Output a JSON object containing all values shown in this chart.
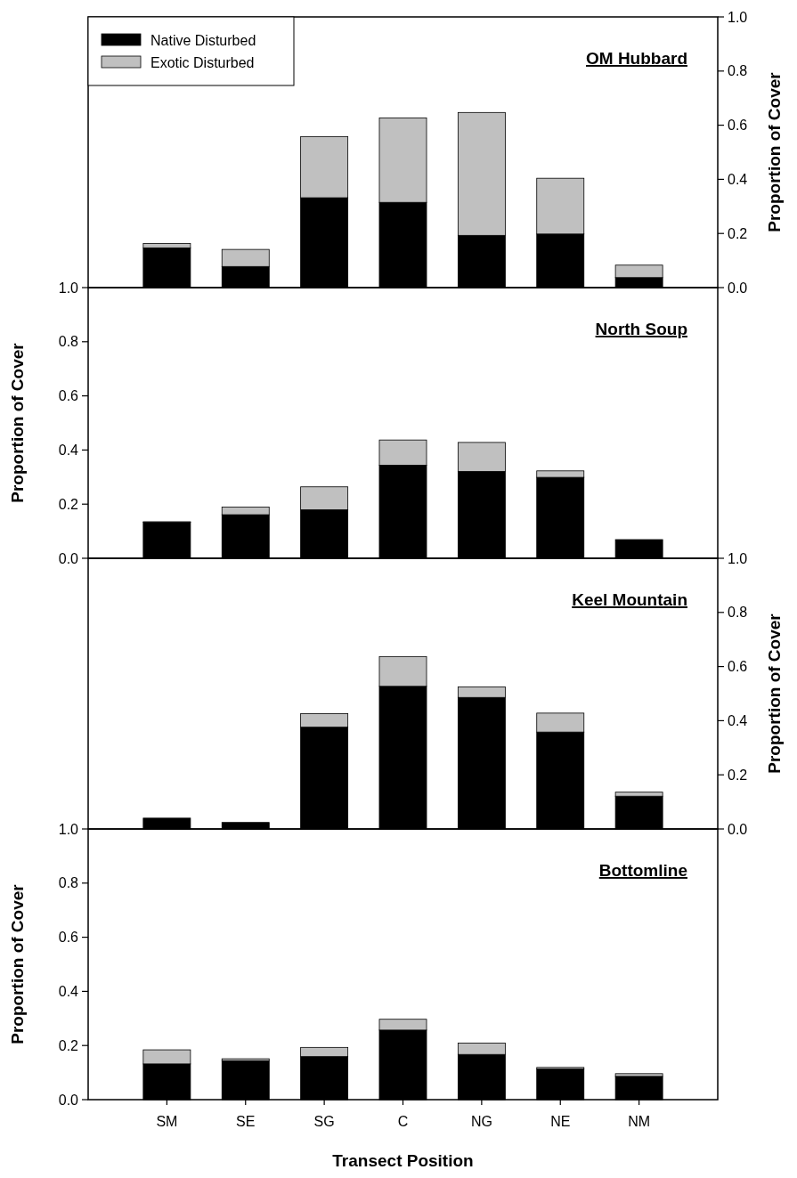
{
  "chart_data": [
    {
      "type": "bar",
      "title": "OM Hubbard",
      "stacked": true,
      "legend": "top left",
      "categories": [
        null,
        null,
        null,
        null,
        null,
        null,
        null
      ],
      "ylabel": "Proportion of Cover",
      "ylim": [
        0,
        1
      ],
      "yticks": [
        {
          "value": 0,
          "label": "0.0"
        },
        {
          "value": 0.2,
          "label": "0.2"
        },
        {
          "value": 0.4,
          "label": "0.4"
        },
        {
          "value": 0.6,
          "label": "0.6"
        },
        {
          "value": 0.8,
          "label": "0.8"
        },
        {
          "value": 1,
          "label": "1.0"
        }
      ],
      "series": [
        {
          "name": "Native Disturbed",
          "color": "#000000",
          "values": [
            0.147,
            0.078,
            0.332,
            0.315,
            0.193,
            0.198,
            0.037
          ]
        },
        {
          "name": "Exotic Disturbed",
          "color": "#c0c0c0",
          "values": [
            0.016,
            0.063,
            0.226,
            0.312,
            0.454,
            0.206,
            0.046
          ]
        }
      ]
    },
    {
      "type": "bar",
      "title": "North Soup",
      "stacked": true,
      "categories": [
        null,
        null,
        null,
        null,
        null,
        null,
        null
      ],
      "ylabel": "Proportion of Cover",
      "ylim": [
        0,
        1
      ],
      "yticks": [
        {
          "value": 0,
          "label": "0.0"
        },
        {
          "value": 0.2,
          "label": "0.2"
        },
        {
          "value": 0.4,
          "label": "0.4"
        },
        {
          "value": 0.6,
          "label": "0.6"
        },
        {
          "value": 0.8,
          "label": "0.8"
        },
        {
          "value": 1,
          "label": "1.0"
        }
      ],
      "series": [
        {
          "color": "#000000",
          "values": [
            0.133,
            0.161,
            0.179,
            0.344,
            0.321,
            0.299,
            0.069
          ]
        },
        {
          "color": "#c0c0c0",
          "values": [
            0.002,
            0.028,
            0.085,
            0.093,
            0.107,
            0.024,
            0
          ]
        }
      ]
    },
    {
      "type": "bar",
      "title": "Keel Mountain",
      "stacked": true,
      "categories": [
        null,
        null,
        null,
        null,
        null,
        null,
        null
      ],
      "ylabel": "Proportion of Cover",
      "ylim": [
        0,
        1
      ],
      "yticks": [
        {
          "value": 0,
          "label": "0.0"
        },
        {
          "value": 0.2,
          "label": "0.2"
        },
        {
          "value": 0.4,
          "label": "0.4"
        },
        {
          "value": 0.6,
          "label": "0.6"
        },
        {
          "value": 0.8,
          "label": "0.8"
        },
        {
          "value": 1,
          "label": "1.0"
        }
      ],
      "series": [
        {
          "color": "#000000",
          "values": [
            0.04,
            0.024,
            0.376,
            0.527,
            0.486,
            0.358,
            0.121
          ]
        },
        {
          "color": "#c0c0c0",
          "values": [
            0,
            0,
            0.05,
            0.11,
            0.039,
            0.07,
            0.015
          ]
        }
      ]
    },
    {
      "type": "bar",
      "title": "Bottomline",
      "stacked": true,
      "categories": [
        "SM",
        "SE",
        "SG",
        "C",
        "NG",
        "NE",
        "NM"
      ],
      "xlabel": "Transect Position",
      "ylabel": "Proportion of Cover",
      "ylim": [
        0,
        1
      ],
      "yticks": [
        {
          "value": 0,
          "label": "0.0"
        },
        {
          "value": 0.2,
          "label": "0.2"
        },
        {
          "value": 0.4,
          "label": "0.4"
        },
        {
          "value": 0.6,
          "label": "0.6"
        },
        {
          "value": 0.8,
          "label": "0.8"
        },
        {
          "value": 1,
          "label": "1.0"
        }
      ],
      "series": [
        {
          "color": "#000000",
          "values": [
            0.132,
            0.144,
            0.159,
            0.257,
            0.167,
            0.113,
            0.086
          ]
        },
        {
          "color": "#c0c0c0",
          "values": [
            0.052,
            0.007,
            0.034,
            0.04,
            0.042,
            0.006,
            0.01
          ]
        }
      ]
    }
  ]
}
